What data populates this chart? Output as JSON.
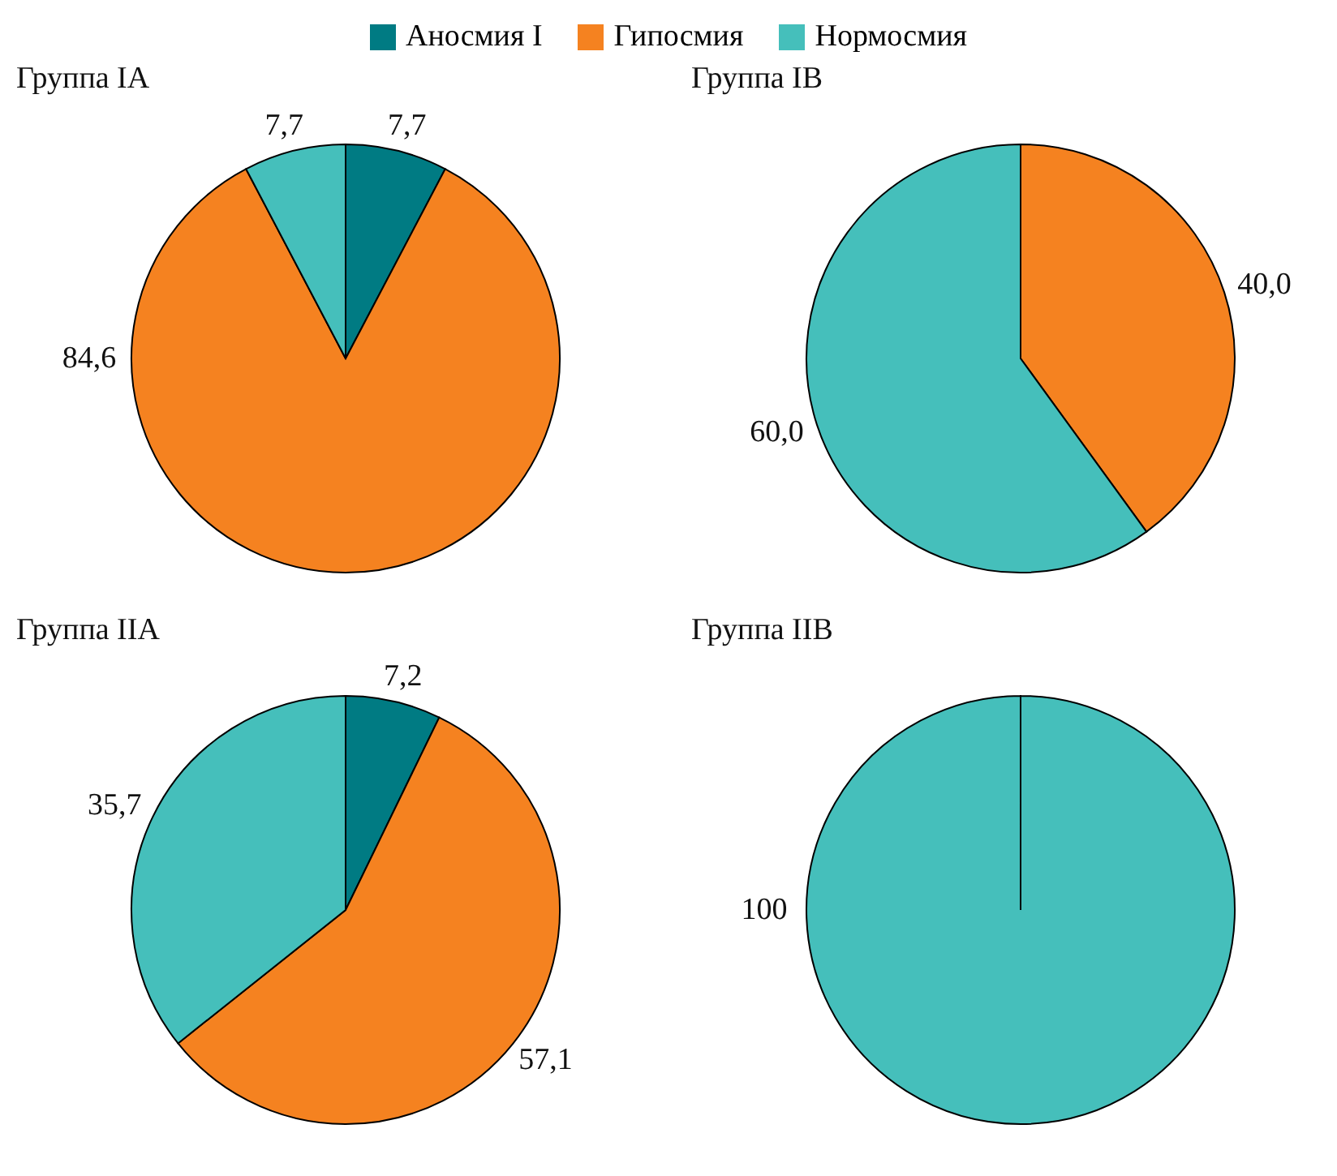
{
  "chart_data": [
    {
      "type": "pie",
      "title": "Группа IA",
      "legend": "top",
      "categories": [
        "Аносмия I",
        "Гипосмия",
        "Нормосмия"
      ],
      "values": [
        7.7,
        84.6,
        7.7
      ],
      "colors": [
        "#007b83",
        "#f58220",
        "#45bfbb"
      ],
      "value_labels": [
        "7,7",
        "84,6",
        "7,7"
      ]
    },
    {
      "type": "pie",
      "title": "Группа IB",
      "categories": [
        null,
        null
      ],
      "values": [
        40.0,
        60.0
      ],
      "colors": [
        "#f58220",
        "#45bfbb"
      ],
      "value_labels": [
        "40,0",
        "60,0"
      ]
    },
    {
      "type": "pie",
      "title": "Группа IIA",
      "categories": [
        null,
        null,
        null
      ],
      "values": [
        7.2,
        57.1,
        35.7
      ],
      "colors": [
        "#007b83",
        "#f58220",
        "#45bfbb"
      ],
      "value_labels": [
        "7,2",
        "57,1",
        "35,7"
      ]
    },
    {
      "type": "pie",
      "title": "Группа IIB",
      "categories": [
        null
      ],
      "values": [
        100
      ],
      "colors": [
        "#45bfbb"
      ],
      "value_labels": [
        "100"
      ]
    }
  ]
}
